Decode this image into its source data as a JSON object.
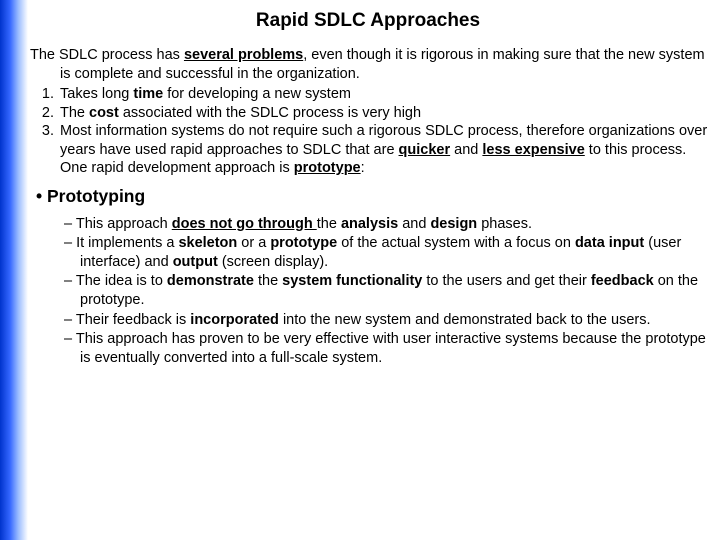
{
  "title": "Rapid SDLC Approaches",
  "intro": {
    "pre": "The SDLC process has ",
    "bold_underline": "several problems",
    "post": ", even though it is rigorous in making sure that the new system is complete and successful in the organization."
  },
  "problems": [
    {
      "pre": "Takes long ",
      "b1": "time",
      "post": " for developing a new system"
    },
    {
      "pre": "The ",
      "b1": "cost",
      "post": " associated with the SDLC process is very high"
    },
    {
      "text": "Most information systems do not require such a rigorous SDLC process, therefore organizations over years have used rapid approaches to SDLC that are ",
      "bu1": "quicker",
      "mid1": " and ",
      "bu2": "less expensive",
      "mid2": " to this process. One rapid development approach is ",
      "bu3": "prototype",
      "end": ":"
    }
  ],
  "bullet_heading": "Prototyping",
  "subpoints": [
    {
      "t0": "This approach ",
      "bu1": "does not go through ",
      "t1": "the ",
      "b1": "analysis",
      "t2": " and ",
      "b2": "design",
      "t3": " phases."
    },
    {
      "t0": "It implements a ",
      "b1": "skeleton",
      "t1": " or a ",
      "b2": "prototype",
      "t2": " of the actual system with a focus on ",
      "b3": "data input",
      "t3": " (user interface) and ",
      "b4": "output",
      "t4": " (screen display)."
    },
    {
      "t0": "The idea is to ",
      "b1": "demonstrate",
      "t1": " the ",
      "b2": "system functionality",
      "t2": " to the users and get their ",
      "b3": "feedback",
      "t3": " on the prototype."
    },
    {
      "t0": "Their feedback is ",
      "b1": "incorporated",
      "t1": " into the new system and demonstrated back to the users."
    },
    {
      "t0": "This approach has proven to be very effective with user interactive systems because the prototype is eventually converted into a full-scale system."
    }
  ],
  "colors": {
    "gradient_start": "#0033cc",
    "gradient_end": "#ffffff",
    "text": "#000000",
    "background": "#ffffff"
  }
}
